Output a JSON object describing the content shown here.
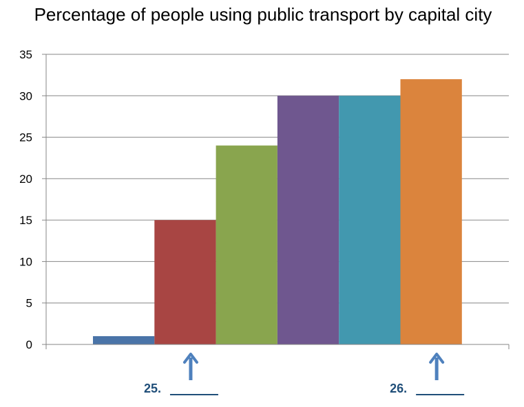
{
  "chart_data": {
    "type": "bar",
    "title": "Percentage of people using public transport by capital city",
    "xlabel": "",
    "ylabel": "",
    "ylim": [
      0,
      35
    ],
    "yticks": [
      0,
      5,
      10,
      15,
      20,
      25,
      30,
      35
    ],
    "grid": true,
    "legend": "none",
    "bars": [
      {
        "value": 1,
        "color": "#4A74A8"
      },
      {
        "value": 15,
        "color": "#A84543"
      },
      {
        "value": 24,
        "color": "#89A54E"
      },
      {
        "value": 30,
        "color": "#6F578F"
      },
      {
        "value": 30,
        "color": "#4298AF"
      },
      {
        "value": 32,
        "color": "#DB843D"
      }
    ],
    "annotations": [
      {
        "label": "25.",
        "bar_index": 1,
        "color": "#1F4E79",
        "arrow_color": "#4F81BD"
      },
      {
        "label": "26.",
        "bar_index": 5,
        "color": "#1F4E79",
        "arrow_color": "#4F81BD"
      }
    ]
  }
}
